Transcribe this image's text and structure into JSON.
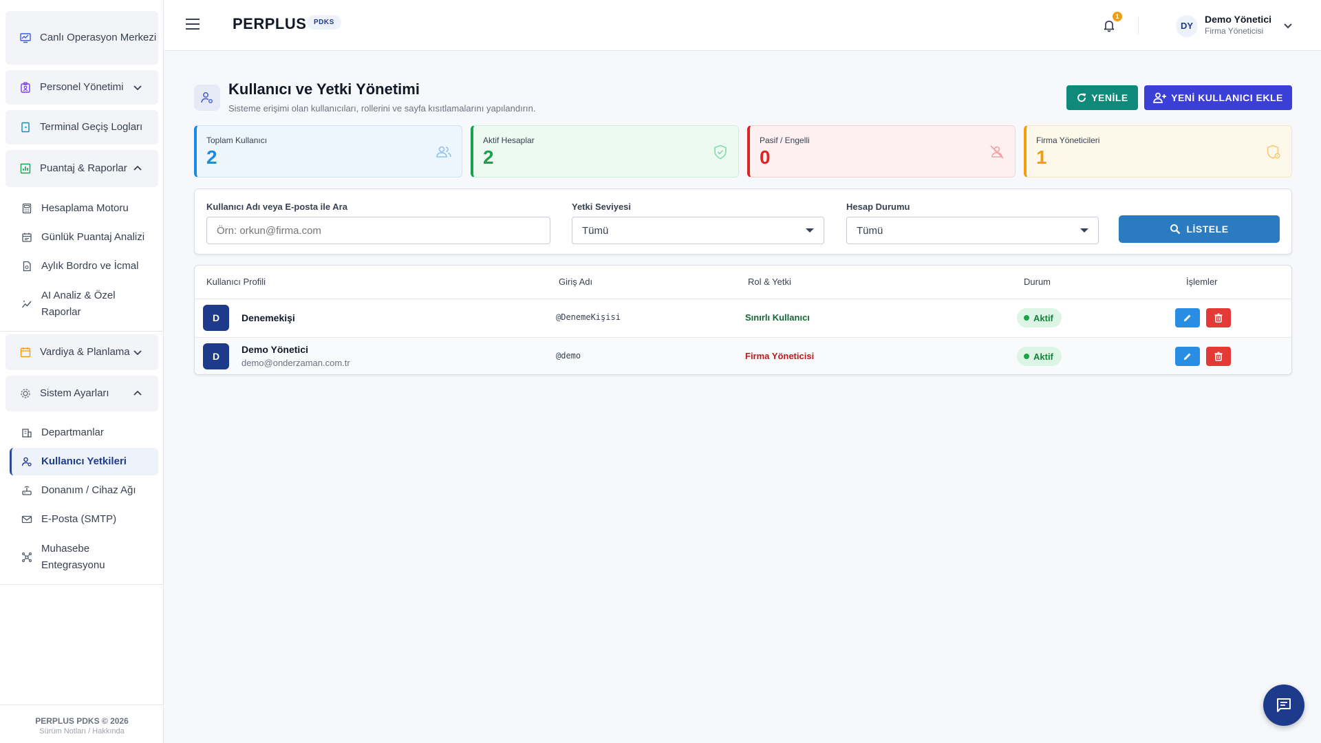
{
  "sidebar": {
    "items": [
      {
        "label": "Canlı Operasyon Merkezi",
        "icon": "monitor-chart-icon"
      },
      {
        "label": "Personel Yönetimi",
        "icon": "badge-icon",
        "chevron": "down"
      },
      {
        "label": "Terminal Geçiş Logları",
        "icon": "door-icon"
      },
      {
        "label": "Puantaj & Raporlar",
        "icon": "report-chart-icon",
        "chevron": "up"
      },
      {
        "label": "Vardiya & Planlama",
        "icon": "calendar-icon",
        "chevron": "down"
      },
      {
        "label": "Sistem Ayarları",
        "icon": "cog-icon",
        "chevron": "up"
      }
    ],
    "reports_sub": [
      {
        "label": "Hesaplama Motoru",
        "icon": "calculator-icon"
      },
      {
        "label": "Günlük Puantaj Analizi",
        "icon": "calendar-check-icon"
      },
      {
        "label": "Aylık Bordro ve İcmal",
        "icon": "file-icon"
      },
      {
        "label": "AI Analiz & Özel Raporlar",
        "icon": "trend-icon"
      }
    ],
    "settings_sub": [
      {
        "label": "Departmanlar",
        "icon": "building-icon"
      },
      {
        "label": "Kullanıcı Yetkileri",
        "icon": "users-cog-icon",
        "active": true
      },
      {
        "label": "Donanım / Cihaz Ağı",
        "icon": "router-icon"
      },
      {
        "label": "E-Posta (SMTP)",
        "icon": "mail-icon"
      },
      {
        "label": "Muhasebe Entegrasyonu",
        "icon": "hub-icon"
      }
    ],
    "footer": {
      "line1": "PERPLUS PDKS © 2026",
      "line2": "Sürüm Notları / Hakkında"
    }
  },
  "topbar": {
    "brand": "PERPLUS",
    "badge": "PDKS",
    "notification_count": "1",
    "user": {
      "initials": "DY",
      "name": "Demo Yönetici",
      "role": "Firma Yöneticisi"
    }
  },
  "page": {
    "title": "Kullanıcı ve Yetki Yönetimi",
    "subtitle": "Sisteme erişimi olan kullanıcıları, rollerini ve sayfa kısıtlamalarını yapılandırın.",
    "refresh_label": "YENİLE",
    "add_label": "YENİ KULLANICI EKLE"
  },
  "stats": [
    {
      "label": "Toplam Kullanıcı",
      "value": "2",
      "color": "#1e88e5",
      "bg": "#eef6fd",
      "icon": "users-icon"
    },
    {
      "label": "Aktif Hesaplar",
      "value": "2",
      "color": "#16a34a",
      "bg": "#edfaf2",
      "icon": "shield-check-icon"
    },
    {
      "label": "Pasif / Engelli",
      "value": "0",
      "color": "#dc2626",
      "bg": "#fdf0f0",
      "icon": "person-off-icon"
    },
    {
      "label": "Firma Yöneticileri",
      "value": "1",
      "color": "#f59e0b",
      "bg": "#fdf8ea",
      "icon": "shield-admin-icon"
    }
  ],
  "filters": {
    "search_label": "Kullanıcı Adı veya E-posta ile Ara",
    "search_placeholder": "Örn: orkun@firma.com",
    "role_label": "Yetki Seviyesi",
    "role_value": "Tümü",
    "status_label": "Hesap Durumu",
    "status_value": "Tümü",
    "list_button": "LİSTELE"
  },
  "table": {
    "headers": [
      "Kullanıcı Profili",
      "Giriş Adı",
      "Rol & Yetki",
      "Durum",
      "İşlemler"
    ],
    "rows": [
      {
        "initial": "D",
        "name": "Denemekişi",
        "email": "",
        "login": "@DenemeKişisi",
        "role": "Sınırlı Kullanıcı",
        "role_color": "#166534",
        "status": "Aktif"
      },
      {
        "initial": "D",
        "name": "Demo Yönetici",
        "email": "demo@onderzaman.com.tr",
        "login": "@demo",
        "role": "Firma Yöneticisi",
        "role_color": "#b91c1c",
        "status": "Aktif"
      }
    ]
  }
}
